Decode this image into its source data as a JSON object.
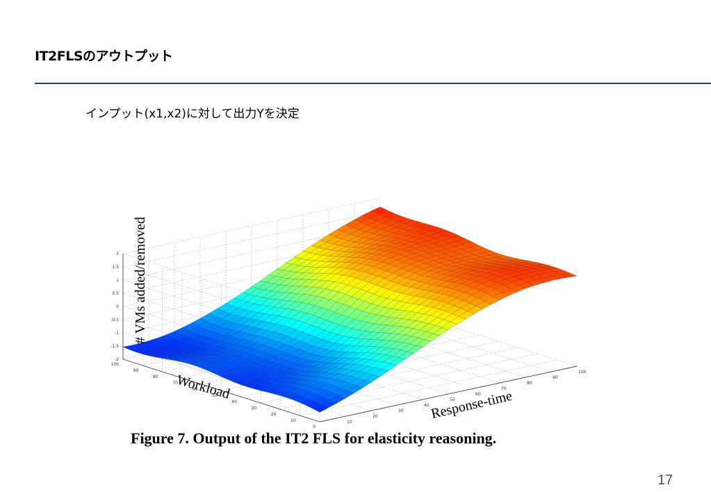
{
  "slide": {
    "title": "IT2FLSのアウトプット",
    "bullet": "インプット(x1,x2)に対して出力Yを決定",
    "caption": "Figure 7. Output of the IT2 FLS for elasticity reasoning.",
    "page_number": "17",
    "accent_color": "#1f3f95"
  },
  "chart_data": {
    "type": "surface",
    "colormap": "jet",
    "zlabel": "# VMs added/removed",
    "xlabel": "Response-time",
    "ylabel": "Workload",
    "z_ticks": [
      "2",
      "1.5",
      "1",
      "0.5",
      "0",
      "-0.5",
      "-1",
      "-1.5",
      "-2"
    ],
    "x_ticks": [
      "10",
      "20",
      "30",
      "40",
      "50",
      "60",
      "70",
      "80",
      "90",
      "100"
    ],
    "y_ticks": [
      "100",
      "90",
      "80",
      "70",
      "60",
      "50",
      "40",
      "30",
      "20",
      "10",
      "0"
    ],
    "zlim": [
      -2,
      2
    ],
    "xlim": [
      0,
      100
    ],
    "ylim": [
      0,
      100
    ],
    "grid": true
  }
}
